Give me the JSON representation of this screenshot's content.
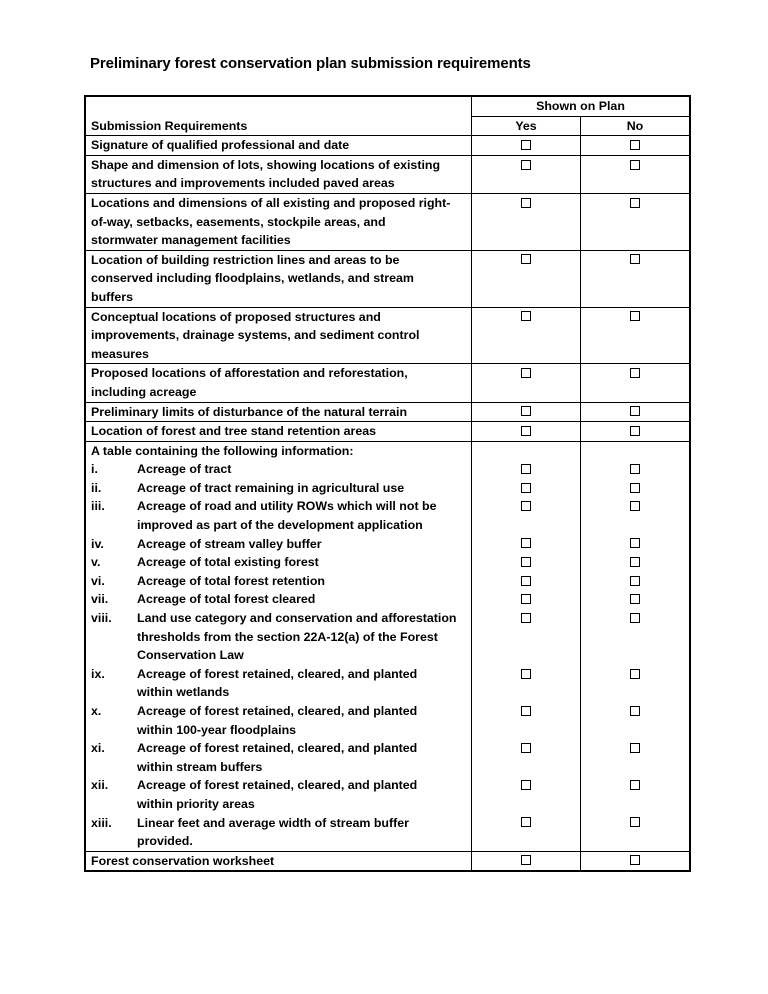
{
  "title": "Preliminary forest conservation plan submission requirements",
  "table": {
    "header_group": "Shown on Plan",
    "header_requirements": "Submission Requirements",
    "header_yes": "Yes",
    "header_no": "No",
    "rows": [
      {
        "lines": [
          "Signature of qualified professional and date"
        ]
      },
      {
        "lines": [
          "Shape and dimension of lots, showing locations of existing",
          "structures and improvements included paved areas"
        ]
      },
      {
        "lines": [
          "Locations and dimensions of all existing and proposed right-",
          "of-way, setbacks, easements, stockpile areas, and",
          "stormwater management facilities"
        ]
      },
      {
        "lines": [
          "Location of building restriction lines and areas to be",
          "conserved including floodplains, wetlands, and stream",
          "buffers"
        ]
      },
      {
        "lines": [
          "Conceptual locations of proposed structures and",
          "improvements, drainage systems, and sediment control",
          "measures"
        ]
      },
      {
        "lines": [
          "Proposed locations of afforestation and reforestation,",
          "including acreage"
        ]
      },
      {
        "lines": [
          "Preliminary limits of disturbance of the natural terrain"
        ]
      },
      {
        "lines": [
          "Location of forest and tree stand retention areas"
        ]
      }
    ],
    "table_info": {
      "intro": "A table containing the following information:",
      "items": [
        {
          "num": "i.",
          "lines": [
            "Acreage of tract"
          ]
        },
        {
          "num": "ii.",
          "lines": [
            "Acreage of tract remaining in agricultural use"
          ]
        },
        {
          "num": "iii.",
          "lines": [
            "Acreage of road and utility ROWs which will not be",
            "improved as part of the development application"
          ]
        },
        {
          "num": "iv.",
          "lines": [
            "Acreage of stream valley buffer"
          ]
        },
        {
          "num": "v.",
          "lines": [
            "Acreage of total existing forest"
          ]
        },
        {
          "num": "vi.",
          "lines": [
            "Acreage of total forest retention"
          ]
        },
        {
          "num": "vii.",
          "lines": [
            "Acreage of total forest cleared"
          ]
        },
        {
          "num": "viii.",
          "lines": [
            "Land use category and conservation and afforestation",
            "thresholds from the section 22A-12(a) of the Forest",
            "Conservation Law"
          ]
        },
        {
          "num": "ix.",
          "lines": [
            "Acreage of forest retained, cleared, and planted",
            "within wetlands"
          ]
        },
        {
          "num": "x.",
          "lines": [
            "Acreage of forest retained, cleared, and planted",
            "within 100-year floodplains"
          ]
        },
        {
          "num": "xi.",
          "lines": [
            "Acreage of forest retained, cleared, and planted",
            "within stream buffers"
          ]
        },
        {
          "num": "xii.",
          "lines": [
            "Acreage of forest retained, cleared, and planted",
            "within priority areas"
          ]
        },
        {
          "num": "xiii.",
          "lines": [
            "Linear feet and average width of stream buffer",
            "provided."
          ]
        }
      ]
    },
    "last_row": {
      "lines": [
        "Forest conservation worksheet"
      ]
    }
  }
}
